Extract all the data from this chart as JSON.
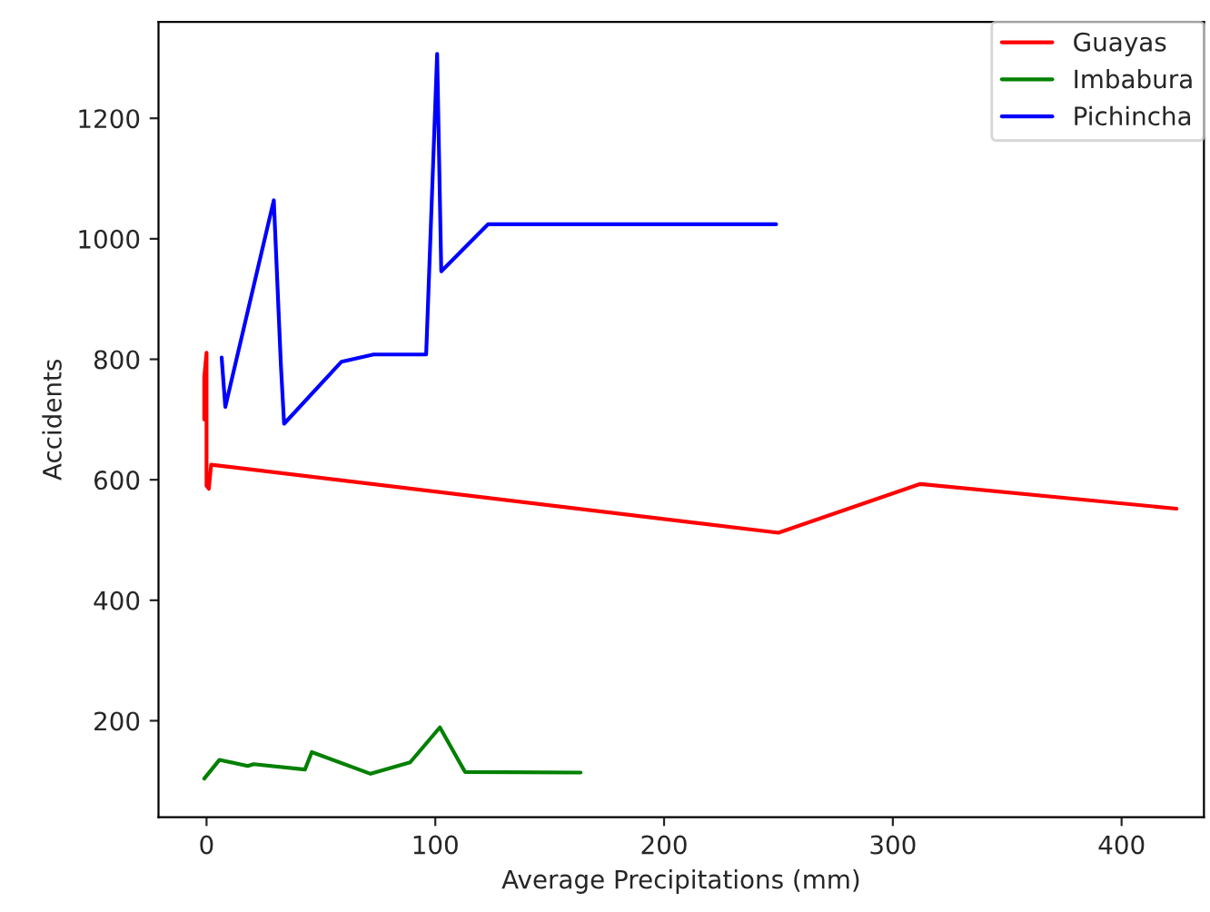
{
  "chart_data": {
    "type": "line",
    "xlabel": "Average Precipitations (mm)",
    "ylabel": "Accidents",
    "xlim": [
      -21,
      436
    ],
    "ylim": [
      40,
      1360
    ],
    "xticks": [
      0,
      100,
      200,
      300,
      400
    ],
    "yticks": [
      200,
      400,
      600,
      800,
      1000,
      1200
    ],
    "grid": false,
    "legend": "top right",
    "series": [
      {
        "name": "Guayas",
        "color": "#ff0000",
        "x": [
          -1,
          -1,
          0,
          0,
          1,
          2,
          250,
          312,
          424
        ],
        "values": [
          700,
          770,
          811,
          590,
          585,
          625,
          512,
          593,
          552
        ]
      },
      {
        "name": "Imbabura",
        "color": "#008000",
        "x": [
          -1,
          5.6,
          18,
          20.6,
          43,
          46,
          71.7,
          89,
          102,
          113,
          163.5
        ],
        "values": [
          104,
          135,
          125,
          128,
          119,
          148,
          112,
          131,
          189,
          115,
          114
        ]
      },
      {
        "name": "Pichincha",
        "color": "#0000ff",
        "x": [
          6.6,
          8.2,
          29.4,
          32.5,
          33.9,
          59,
          73,
          96,
          100.8,
          102.6,
          123,
          249
        ],
        "values": [
          803,
          721,
          1064,
          790,
          693,
          796,
          808,
          808,
          1307,
          946,
          1024,
          1024
        ]
      }
    ]
  }
}
